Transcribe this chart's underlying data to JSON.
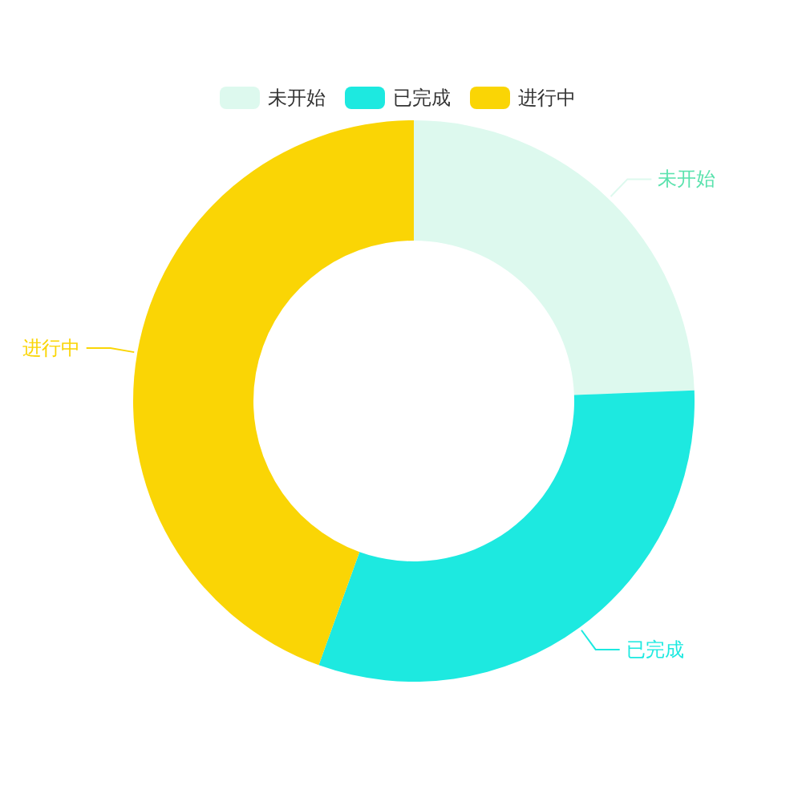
{
  "chart_data": {
    "type": "donut",
    "categories": [
      "未开始",
      "已完成",
      "进行中"
    ],
    "values": [
      24.4,
      31.1,
      44.5
    ],
    "colors": [
      "#ddf9ee",
      "#1de9e0",
      "#fad505"
    ],
    "legend": "top"
  }
}
